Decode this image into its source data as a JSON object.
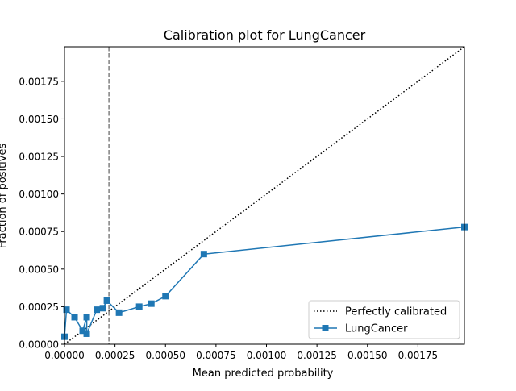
{
  "chart_data": {
    "type": "line",
    "title": "Calibration plot for LungCancer",
    "xlabel": "Mean predicted probability",
    "ylabel": "Fraction of positives",
    "xlim": [
      0,
      0.00198
    ],
    "ylim": [
      0,
      0.00198
    ],
    "x_ticks": [
      "0.00000",
      "0.00025",
      "0.00050",
      "0.00075",
      "0.00100",
      "0.00125",
      "0.00150",
      "0.00175"
    ],
    "y_ticks": [
      "0.00000",
      "0.00025",
      "0.00050",
      "0.00075",
      "0.00100",
      "0.00125",
      "0.00150",
      "0.00175"
    ],
    "grid": false,
    "legend_placement": "lower-right",
    "reference_line": {
      "name": "Perfectly calibrated",
      "style": "dotted",
      "color": "#000000",
      "x": [
        0,
        0.00198
      ],
      "y": [
        0,
        0.00198
      ]
    },
    "vertical_line": {
      "x": 0.00022,
      "style": "dashed",
      "color": "#808080"
    },
    "series": [
      {
        "name": "LungCancer",
        "color": "#1f77b4",
        "marker": "square",
        "x": [
          0.0,
          1e-05,
          5e-05,
          9e-05,
          0.00011,
          0.00011,
          0.00016,
          0.00019,
          0.00021,
          0.00027,
          0.00037,
          0.00043,
          0.0005,
          0.00069,
          0.00198
        ],
        "y": [
          5e-05,
          0.00023,
          0.00018,
          9e-05,
          0.00018,
          7e-05,
          0.00023,
          0.00024,
          0.00029,
          0.00021,
          0.00025,
          0.00027,
          0.00032,
          0.0006,
          0.00078
        ]
      }
    ]
  }
}
